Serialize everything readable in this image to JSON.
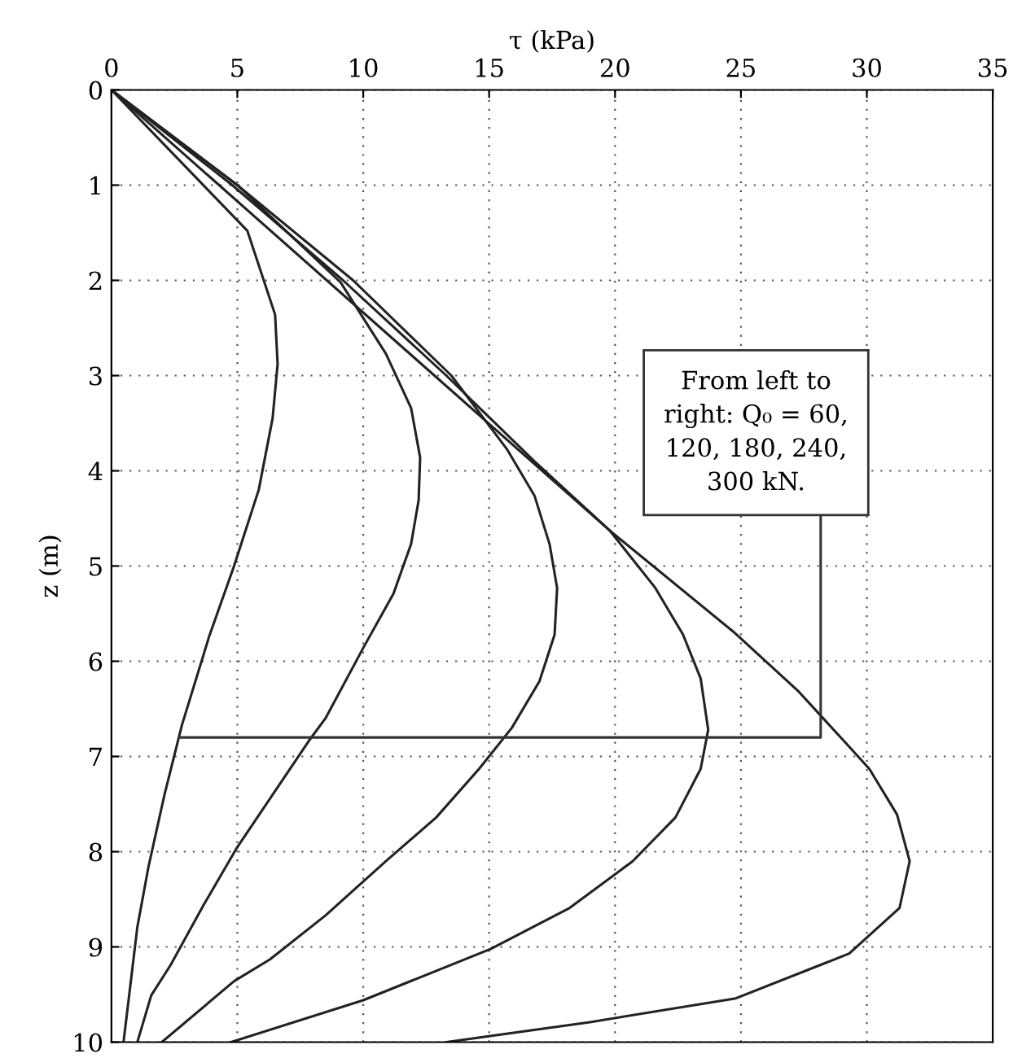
{
  "chart_data": {
    "type": "line",
    "xlabel": "τ (kPa)",
    "ylabel": "z (m)",
    "xlim": [
      0,
      35
    ],
    "xticks": [
      0,
      5,
      10,
      15,
      20,
      25,
      30,
      35
    ],
    "ylim": [
      10,
      0
    ],
    "yticks": [
      0,
      1,
      2,
      3,
      4,
      5,
      6,
      7,
      8,
      9,
      10
    ],
    "grid": true,
    "line_style": "solid",
    "marker": "none",
    "legend": false,
    "series": [
      {
        "color": "#222222",
        "x": [
          0,
          5.4,
          6.5,
          6.6,
          6.4,
          5.85,
          4.87,
          3.88,
          2.8,
          2.1,
          1.47,
          1.03,
          0.64,
          0.48
        ],
        "values": [
          0,
          1.48,
          2.36,
          2.88,
          3.45,
          4.2,
          5.0,
          5.74,
          6.67,
          7.41,
          8.16,
          8.79,
          9.65,
          10
        ]
      },
      {
        "color": "#222222",
        "x": [
          0,
          5,
          9.1,
          10.9,
          11.9,
          12.26,
          12.2,
          11.9,
          11.2,
          10.0,
          8.5,
          7.83,
          4.98,
          3.66,
          2.35,
          1.58,
          1.03
        ],
        "values": [
          0,
          1,
          2.02,
          2.77,
          3.34,
          3.86,
          4.31,
          4.77,
          5.29,
          5.86,
          6.6,
          6.84,
          7.96,
          8.56,
          9.19,
          9.51,
          10
        ]
      },
      {
        "color": "#222222",
        "x": [
          0,
          5,
          9.6,
          13.5,
          15.7,
          16.8,
          17.4,
          17.7,
          17.6,
          17.0,
          15.9,
          14.6,
          12.9,
          10.9,
          8.5,
          6.3,
          4.87,
          2.0
        ],
        "values": [
          0,
          1,
          2,
          3,
          3.77,
          4.26,
          4.77,
          5.23,
          5.72,
          6.21,
          6.7,
          7.13,
          7.64,
          8.1,
          8.67,
          9.13,
          9.36,
          10
        ]
      },
      {
        "color": "#222222",
        "x": [
          0,
          4.8,
          9.2,
          13.3,
          16.8,
          19.8,
          21.6,
          22.7,
          23.4,
          23.7,
          23.4,
          22.4,
          20.7,
          18.2,
          15.07,
          10.0,
          4.75
        ],
        "values": [
          0,
          1,
          2,
          3,
          3.9,
          4.63,
          5.23,
          5.72,
          6.18,
          6.72,
          7.13,
          7.64,
          8.1,
          8.59,
          9.02,
          9.56,
          10
        ]
      },
      {
        "color": "#222222",
        "x": [
          0,
          19.8,
          24.7,
          27.3,
          29.1,
          30.1,
          31.2,
          31.7,
          31.3,
          29.3,
          24.8,
          19.0,
          13.3
        ],
        "values": [
          0,
          4.63,
          5.69,
          6.32,
          6.84,
          7.13,
          7.61,
          8.1,
          8.59,
          9.07,
          9.54,
          9.79,
          10
        ]
      }
    ],
    "annotations": [
      {
        "text": "From left to\nright: Q₀ = 60,\n120, 180, 240,\n300 kN.",
        "x": 2.7,
        "y": 6.8
      }
    ]
  }
}
